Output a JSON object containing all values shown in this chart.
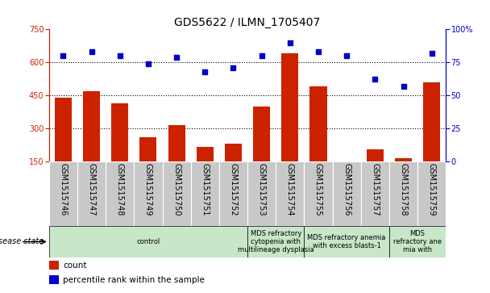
{
  "title": "GDS5622 / ILMN_1705407",
  "samples": [
    "GSM1515746",
    "GSM1515747",
    "GSM1515748",
    "GSM1515749",
    "GSM1515750",
    "GSM1515751",
    "GSM1515752",
    "GSM1515753",
    "GSM1515754",
    "GSM1515755",
    "GSM1515756",
    "GSM1515757",
    "GSM1515758",
    "GSM1515759"
  ],
  "counts": [
    440,
    468,
    415,
    258,
    315,
    215,
    228,
    400,
    640,
    490,
    148,
    205,
    165,
    510
  ],
  "percentile_ranks": [
    80,
    83,
    80,
    74,
    79,
    68,
    71,
    80,
    90,
    83,
    80,
    62,
    57,
    82
  ],
  "disease_state_groups": [
    {
      "label": "control",
      "start": 0,
      "end": 6
    },
    {
      "label": "MDS refractory\ncytopenia with\nmultilineage dysplasia",
      "start": 7,
      "end": 8
    },
    {
      "label": "MDS refractory anemia\nwith excess blasts-1",
      "start": 9,
      "end": 11
    },
    {
      "label": "MDS\nrefractory ane\nmia with",
      "start": 12,
      "end": 13
    }
  ],
  "ylim_left": [
    150,
    750
  ],
  "ylim_right": [
    0,
    100
  ],
  "yticks_left": [
    150,
    300,
    450,
    600,
    750
  ],
  "yticks_right": [
    0,
    25,
    50,
    75,
    100
  ],
  "bar_color": "#cc2200",
  "dot_color": "#0000cc",
  "gray_bg": "#c8c8c8",
  "disease_state_bg": "#c8e6c8",
  "title_fontsize": 10,
  "tick_fontsize": 7,
  "label_fontsize": 7.5
}
